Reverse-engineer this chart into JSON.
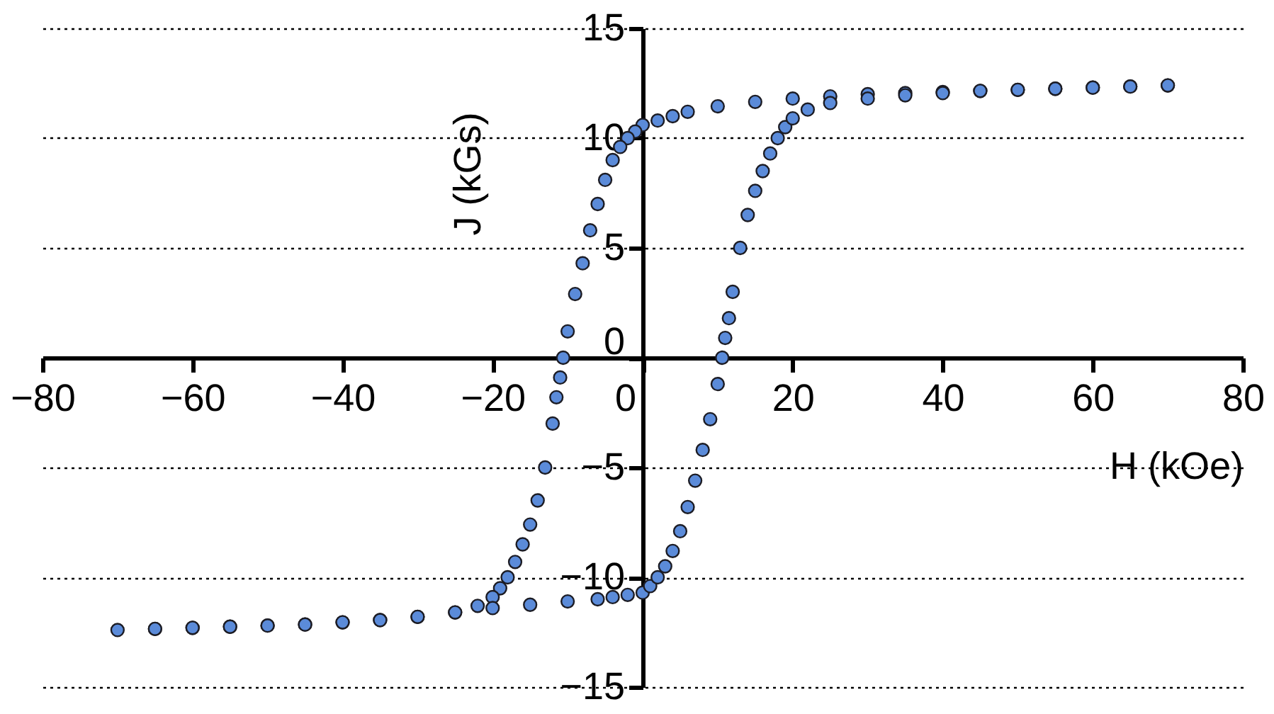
{
  "chart_data": {
    "type": "scatter",
    "xlabel": "H (kOe)",
    "ylabel": "J (kGs)",
    "xlim": [
      -80,
      80
    ],
    "ylim": [
      -15,
      15
    ],
    "xticks": [
      -80,
      -60,
      -40,
      -20,
      0,
      20,
      40,
      60,
      80
    ],
    "yticks": [
      -15,
      -10,
      -5,
      0,
      5,
      10,
      15
    ],
    "grid": "y",
    "marker": "circle",
    "series": [
      {
        "color": "#5b8bd9",
        "x": [
          70,
          65,
          60,
          55,
          50,
          45,
          40,
          35,
          30,
          25,
          20,
          15,
          10,
          6,
          4,
          2,
          0,
          -1,
          -2,
          -3,
          -4,
          -5,
          -6,
          -7,
          -8,
          -9,
          -10,
          -10.6,
          -11,
          -11.5,
          -12,
          -13,
          -14,
          -15,
          -16,
          -17,
          -18,
          -19,
          -20,
          -22,
          -25,
          -30,
          -35,
          -40,
          -45,
          -50,
          -55,
          -60,
          -65,
          -70,
          -65,
          -60,
          -55,
          -50,
          -45,
          -40,
          -35,
          -30,
          -25,
          -20,
          -15,
          -10,
          -6,
          -4,
          -2,
          0,
          1,
          2,
          3,
          4,
          5,
          6,
          7,
          8,
          9,
          10,
          10.6,
          11,
          11.5,
          12,
          13,
          14,
          15,
          16,
          17,
          18,
          19,
          20,
          22,
          25,
          30,
          35,
          40,
          45,
          50,
          55,
          60,
          65,
          70
        ],
        "values": [
          12.4,
          12.35,
          12.3,
          12.25,
          12.2,
          12.15,
          12.1,
          12.05,
          12,
          11.9,
          11.8,
          11.65,
          11.45,
          11.2,
          11,
          10.8,
          10.6,
          10.3,
          10,
          9.6,
          9,
          8.1,
          7,
          5.8,
          4.3,
          2.9,
          1.2,
          0,
          -0.9,
          -1.8,
          -3,
          -5,
          -6.5,
          -7.6,
          -8.5,
          -9.3,
          -10,
          -10.5,
          -10.9,
          -11.3,
          -11.6,
          -11.8,
          -11.95,
          -12.05,
          -12.15,
          -12.2,
          -12.25,
          -12.3,
          -12.35,
          -12.4,
          -12.35,
          -12.3,
          -12.25,
          -12.2,
          -12.15,
          -12.05,
          -11.95,
          -11.8,
          -11.6,
          -11.4,
          -11.25,
          -11.1,
          -11,
          -10.9,
          -10.8,
          -10.7,
          -10.4,
          -10,
          -9.5,
          -8.8,
          -7.9,
          -6.8,
          -5.6,
          -4.2,
          -2.8,
          -1.2,
          0,
          0.9,
          1.8,
          3,
          5,
          6.5,
          7.6,
          8.5,
          9.3,
          10,
          10.5,
          10.9,
          11.3,
          11.6,
          11.8,
          11.95,
          12.05,
          12.15,
          12.2,
          12.25,
          12.3,
          12.35,
          12.4
        ]
      }
    ]
  }
}
